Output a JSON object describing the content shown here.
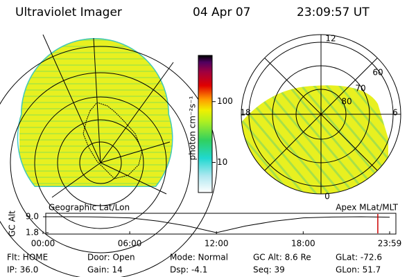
{
  "header": {
    "title": "Ultraviolet Imager",
    "date": "04 Apr 07",
    "time": "23:09:57 UT"
  },
  "colorbar": {
    "label": "photon cm⁻²s⁻¹",
    "scale": "log",
    "lim": [
      3.2,
      575
    ],
    "ticks": [
      10,
      100
    ]
  },
  "left_panel": {
    "label": "Geographic Lat/Lon"
  },
  "polar": {
    "label": "Apex MLat/MLT",
    "mlt_labels": [
      "12",
      "18",
      "6",
      "0"
    ],
    "lat_labels": [
      "60",
      "70",
      "80"
    ]
  },
  "altitude_plot": {
    "ylabel": "GC Alt",
    "yticks": [
      {
        "value": 9.0,
        "label": "9.0"
      },
      {
        "value": 1.8,
        "label": "1.8"
      }
    ],
    "ylim": [
      1.8,
      9.0
    ],
    "xlim": [
      0,
      23.98
    ],
    "xticks": [
      {
        "value": 0,
        "label": "00:00"
      },
      {
        "value": 6,
        "label": "06:00"
      },
      {
        "value": 12,
        "label": "12:00"
      },
      {
        "value": 18,
        "label": "18:00"
      },
      {
        "value": 23.98,
        "label": "23:59"
      }
    ],
    "x": [
      0,
      2,
      4,
      6,
      8,
      10,
      12,
      14,
      16,
      18,
      20,
      22,
      23.98
    ],
    "values": [
      9.0,
      9.0,
      8.9,
      8.5,
      7.0,
      4.8,
      1.8,
      4.8,
      7.0,
      8.5,
      8.9,
      9.0,
      8.8
    ],
    "marker": 23.16,
    "marker_color": "#cc0000"
  },
  "footer": {
    "rows": [
      [
        "Flt: HOME",
        "Door: Open",
        "Mode: Normal",
        "GC Alt: 8.6 Re",
        "GLat: -72.6"
      ],
      [
        "IP: 36.0",
        "Gain: 14",
        "Dsp:  -4.1",
        "Seq: 39",
        "GLon:  51.7"
      ]
    ]
  }
}
